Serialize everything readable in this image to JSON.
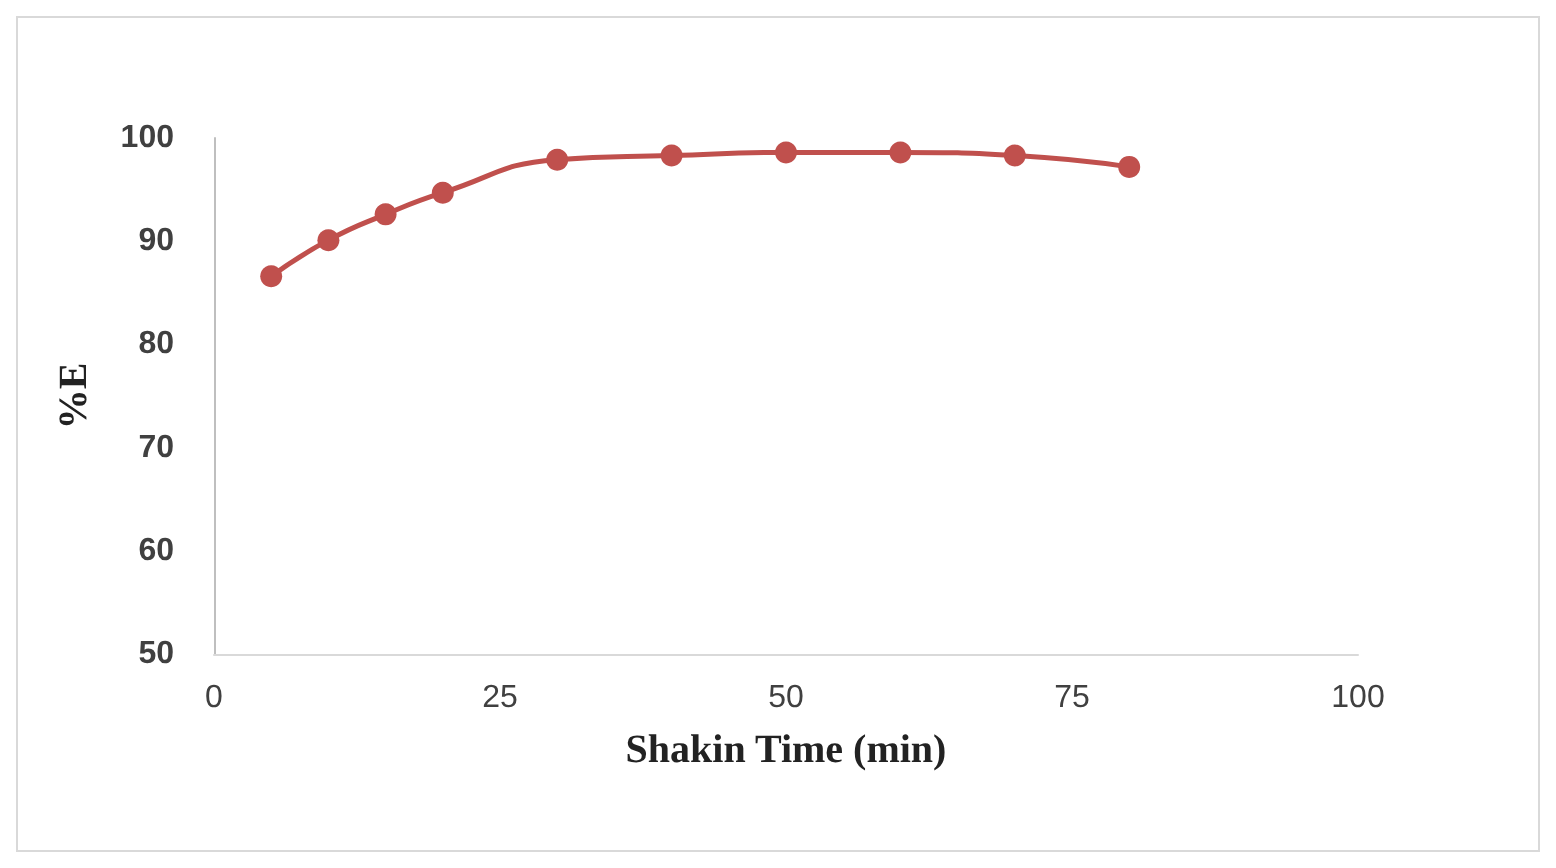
{
  "chart_data": {
    "type": "line",
    "xlabel": "Shakin Time (min)",
    "ylabel": "%E",
    "x": [
      5,
      10,
      15,
      20,
      30,
      40,
      50,
      60,
      70,
      80
    ],
    "series": [
      {
        "color": "#c0504d",
        "values": [
          86.6,
          90.1,
          92.6,
          94.7,
          97.9,
          98.3,
          98.6,
          98.6,
          98.3,
          97.2
        ]
      }
    ],
    "xlim": [
      0,
      100
    ],
    "xticks": [
      0,
      25,
      50,
      75,
      100
    ],
    "ylim": [
      50,
      100
    ],
    "yticks": [
      50,
      60,
      70,
      80,
      90,
      100
    ],
    "grid": false,
    "marker": "circle",
    "line_style": "solid"
  }
}
